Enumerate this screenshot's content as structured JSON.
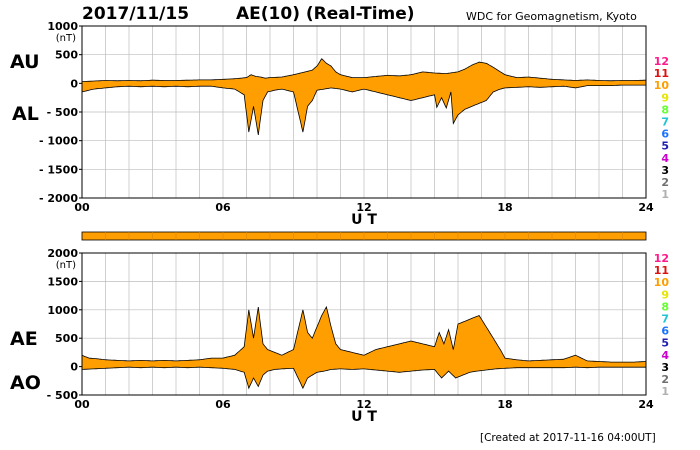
{
  "header": {
    "date": "2017/11/15",
    "title": "AE(10) (Real-Time)",
    "source": "WDC for Geomagnetism, Kyoto"
  },
  "footer": {
    "created": "[Created at 2017-11-16 04:00UT]"
  },
  "colors": {
    "fill": "#ff9e00",
    "grid": "#bdbdbd",
    "frame": "#000000",
    "stations": [
      "#ff1a8c",
      "#e01010",
      "#ff9e00",
      "#e6e600",
      "#66ff33",
      "#22c4d4",
      "#1a73ff",
      "#2020b0",
      "#cc00cc",
      "#000000",
      "#707070",
      "#b0b0b0"
    ]
  },
  "station_numbers": [
    "12",
    "11",
    "10",
    "9",
    "8",
    "7",
    "6",
    "5",
    "4",
    "3",
    "2",
    "1"
  ],
  "chart_data": [
    {
      "type": "area",
      "panel": "AU / AL",
      "labels": {
        "upper": "AU",
        "lower": "AL"
      },
      "xlabel": "U T",
      "ylabel_unit": "(nT)",
      "xlim": [
        0,
        24
      ],
      "xticks": [
        0,
        6,
        12,
        18,
        24
      ],
      "xtick_labels": [
        "00",
        "06",
        "12",
        "18",
        "24"
      ],
      "ylim": [
        -2000,
        1000
      ],
      "yticks": [
        1000,
        500,
        0,
        -500,
        -1000,
        -1500,
        -2000
      ],
      "ytick_labels": [
        "1000",
        "500",
        "0",
        "- 500",
        "- 1000",
        "- 1500",
        "- 2000"
      ],
      "grid": true,
      "series": [
        {
          "name": "AU",
          "x": [
            0,
            0.5,
            1,
            1.5,
            2,
            2.5,
            3,
            3.5,
            4,
            4.5,
            5,
            5.5,
            6,
            6.5,
            7,
            7.2,
            7.4,
            7.6,
            7.8,
            8,
            8.5,
            9,
            9.5,
            9.8,
            10,
            10.2,
            10.4,
            10.6,
            10.8,
            11,
            11.5,
            12,
            12.5,
            13,
            13.5,
            14,
            14.5,
            15,
            15.5,
            16,
            16.3,
            16.6,
            16.9,
            17.2,
            17.5,
            18,
            18.5,
            19,
            19.5,
            20,
            20.5,
            21,
            21.5,
            22,
            22.5,
            23,
            23.5,
            24
          ],
          "values": [
            30,
            40,
            50,
            45,
            50,
            45,
            55,
            50,
            50,
            55,
            60,
            60,
            70,
            80,
            100,
            150,
            120,
            110,
            90,
            100,
            110,
            150,
            200,
            230,
            300,
            430,
            350,
            300,
            200,
            150,
            100,
            100,
            120,
            140,
            130,
            150,
            200,
            180,
            170,
            200,
            250,
            320,
            370,
            350,
            280,
            150,
            100,
            110,
            90,
            70,
            60,
            50,
            60,
            50,
            45,
            50,
            50,
            55
          ]
        },
        {
          "name": "AL",
          "x": [
            0,
            0.5,
            1,
            1.5,
            2,
            2.5,
            3,
            3.5,
            4,
            4.5,
            5,
            5.5,
            6,
            6.5,
            6.9,
            7.1,
            7.3,
            7.5,
            7.7,
            7.9,
            8.2,
            8.5,
            9,
            9.4,
            9.6,
            9.8,
            10,
            10.3,
            10.6,
            11,
            11.5,
            12,
            12.5,
            13,
            13.5,
            14,
            14.5,
            15,
            15.1,
            15.3,
            15.5,
            15.7,
            15.8,
            16,
            16.3,
            16.6,
            16.9,
            17.2,
            17.5,
            17.8,
            18,
            18.5,
            19,
            19.5,
            20,
            20.5,
            21,
            21.5,
            22,
            22.5,
            23,
            23.5,
            24
          ],
          "values": [
            -150,
            -100,
            -80,
            -60,
            -50,
            -60,
            -50,
            -60,
            -50,
            -60,
            -50,
            -50,
            -80,
            -100,
            -200,
            -850,
            -400,
            -900,
            -300,
            -150,
            -120,
            -100,
            -150,
            -850,
            -400,
            -300,
            -120,
            -100,
            -80,
            -100,
            -150,
            -100,
            -150,
            -200,
            -250,
            -300,
            -250,
            -200,
            -420,
            -250,
            -430,
            -150,
            -700,
            -550,
            -450,
            -400,
            -350,
            -300,
            -150,
            -100,
            -80,
            -70,
            -60,
            -70,
            -60,
            -50,
            -80,
            -40,
            -40,
            -40,
            -30,
            -30,
            -30
          ]
        }
      ]
    },
    {
      "type": "area",
      "panel": "AE / AO",
      "labels": {
        "upper": "AE",
        "lower": "AO"
      },
      "xlabel": "U T",
      "ylabel_unit": "(nT)",
      "xlim": [
        0,
        24
      ],
      "xticks": [
        0,
        6,
        12,
        18,
        24
      ],
      "xtick_labels": [
        "00",
        "06",
        "12",
        "18",
        "24"
      ],
      "ylim": [
        -500,
        2000
      ],
      "yticks": [
        2000,
        1500,
        1000,
        500,
        0,
        -500
      ],
      "ytick_labels": [
        "2000",
        "1500",
        "1000",
        "500",
        "0",
        "- 500"
      ],
      "grid": true,
      "series": [
        {
          "name": "AE",
          "x": [
            0,
            0.3,
            0.6,
            1,
            1.5,
            2,
            2.5,
            3,
            3.5,
            4,
            4.5,
            5,
            5.5,
            6,
            6.5,
            6.9,
            7.1,
            7.3,
            7.5,
            7.7,
            7.9,
            8.2,
            8.5,
            9,
            9.4,
            9.6,
            9.8,
            10,
            10.2,
            10.4,
            10.6,
            10.8,
            11,
            11.5,
            12,
            12.5,
            13,
            13.5,
            14,
            14.5,
            15,
            15.2,
            15.4,
            15.6,
            15.8,
            16,
            16.3,
            16.6,
            16.9,
            17.2,
            17.5,
            17.8,
            18,
            18.5,
            19,
            19.5,
            20,
            20.5,
            21,
            21.5,
            22,
            22.5,
            23,
            23.5,
            24
          ],
          "values": [
            200,
            150,
            140,
            120,
            110,
            100,
            110,
            100,
            110,
            100,
            110,
            120,
            150,
            150,
            200,
            350,
            1000,
            500,
            1050,
            400,
            300,
            250,
            200,
            300,
            1000,
            600,
            500,
            700,
            900,
            1050,
            700,
            400,
            300,
            250,
            200,
            300,
            350,
            400,
            450,
            400,
            350,
            600,
            400,
            650,
            300,
            750,
            800,
            850,
            900,
            700,
            500,
            300,
            150,
            120,
            100,
            110,
            120,
            130,
            200,
            100,
            90,
            80,
            80,
            80,
            90
          ]
        },
        {
          "name": "AO",
          "x": [
            0,
            0.5,
            1,
            1.5,
            2,
            2.5,
            3,
            3.5,
            4,
            4.5,
            5,
            5.5,
            6,
            6.5,
            6.9,
            7.1,
            7.3,
            7.5,
            7.7,
            7.9,
            8.2,
            8.5,
            9,
            9.4,
            9.6,
            9.8,
            10,
            10.3,
            10.6,
            11,
            11.5,
            12,
            12.5,
            13,
            13.5,
            14,
            14.5,
            15,
            15.3,
            15.6,
            15.9,
            16.2,
            16.5,
            16.8,
            17.2,
            17.6,
            18,
            18.5,
            19,
            19.5,
            20,
            20.5,
            21,
            21.5,
            22,
            22.5,
            23,
            23.5,
            24
          ],
          "values": [
            -50,
            -40,
            -30,
            -20,
            -10,
            -20,
            -10,
            -20,
            -10,
            -20,
            -10,
            -20,
            -30,
            -50,
            -100,
            -380,
            -200,
            -350,
            -150,
            -80,
            -50,
            -40,
            -30,
            -380,
            -200,
            -150,
            -100,
            -80,
            -50,
            -40,
            -50,
            -40,
            -60,
            -80,
            -100,
            -80,
            -60,
            -50,
            -200,
            -80,
            -200,
            -150,
            -100,
            -80,
            -60,
            -40,
            -30,
            -20,
            -20,
            -20,
            -20,
            -20,
            -10,
            -20,
            -10,
            -10,
            -10,
            -10,
            -10
          ]
        }
      ]
    }
  ]
}
